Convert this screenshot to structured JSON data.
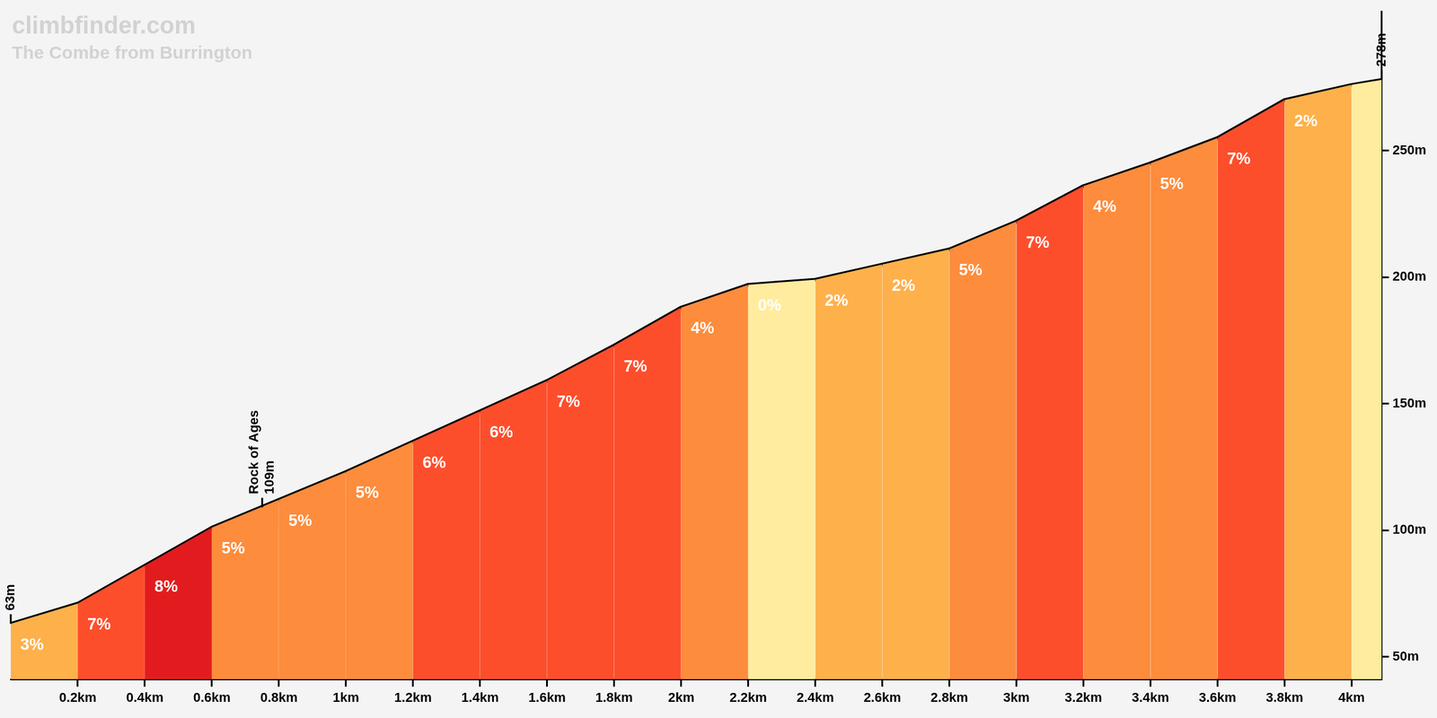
{
  "chart_data": {
    "type": "area",
    "title": "climbfinder.com",
    "subtitle": "The Combe from Burrington",
    "x": [
      0,
      0.2,
      0.4,
      0.6,
      0.8,
      1.0,
      1.2,
      1.4,
      1.6,
      1.8,
      2.0,
      2.2,
      2.4,
      2.6,
      2.8,
      3.0,
      3.2,
      3.4,
      3.6,
      3.8,
      4.0,
      4.09
    ],
    "values": [
      63,
      71,
      86,
      101,
      112,
      123,
      135,
      147,
      159,
      173,
      188,
      197,
      199,
      205,
      211,
      222,
      236,
      245,
      255,
      270,
      276,
      278
    ],
    "color": "#000000",
    "gradients": {
      "values": [
        3,
        7,
        8,
        5,
        5,
        5,
        6,
        6,
        7,
        7,
        4,
        0,
        2,
        2,
        5,
        7,
        4,
        5,
        7,
        2,
        null
      ],
      "value_labels": [
        "3%",
        "7%",
        "8%",
        "5%",
        "5%",
        "5%",
        "6%",
        "6%",
        "7%",
        "7%",
        "4%",
        "0%",
        "2%",
        "2%",
        "5%",
        "7%",
        "4%",
        "5%",
        "7%",
        "2%",
        null
      ],
      "colors": [
        "#feb04b",
        "#fd4e2c",
        "#e21c1e",
        "#fd8c3c",
        "#fd8c3c",
        "#fd8c3c",
        "#fd4e2c",
        "#fd4e2c",
        "#fd4e2c",
        "#fd4e2c",
        "#fd8c3c",
        "#ffec9e",
        "#feb04b",
        "#feb04b",
        "#fd8c3c",
        "#fd4e2c",
        "#fd8c3c",
        "#fd8c3c",
        "#fd4e2c",
        "#feb04b",
        "#ffec9e"
      ]
    },
    "point_labels": [
      {
        "x": 0,
        "y": 63,
        "label": "63m"
      },
      {
        "x": 4.09,
        "y": 278,
        "label": "278m"
      }
    ],
    "annotations": [
      {
        "x": 0.75,
        "y": 109,
        "label": "Rock of Ages",
        "value_label": "109m"
      }
    ],
    "xlim": [
      0,
      4.09
    ],
    "xticks": [
      {
        "value": 0.2,
        "label": "0.2km"
      },
      {
        "value": 0.4,
        "label": "0.4km"
      },
      {
        "value": 0.6,
        "label": "0.6km"
      },
      {
        "value": 0.8,
        "label": "0.8km"
      },
      {
        "value": 1,
        "label": "1km"
      },
      {
        "value": 1.2,
        "label": "1.2km"
      },
      {
        "value": 1.4,
        "label": "1.4km"
      },
      {
        "value": 1.6,
        "label": "1.6km"
      },
      {
        "value": 1.8,
        "label": "1.8km"
      },
      {
        "value": 2,
        "label": "2km"
      },
      {
        "value": 2.2,
        "label": "2.2km"
      },
      {
        "value": 2.4,
        "label": "2.4km"
      },
      {
        "value": 2.6,
        "label": "2.6km"
      },
      {
        "value": 2.8,
        "label": "2.8km"
      },
      {
        "value": 3,
        "label": "3km"
      },
      {
        "value": 3.2,
        "label": "3.2km"
      },
      {
        "value": 3.4,
        "label": "3.4km"
      },
      {
        "value": 3.6,
        "label": "3.6km"
      },
      {
        "value": 3.8,
        "label": "3.8km"
      },
      {
        "value": 4,
        "label": "4km"
      }
    ],
    "ylim": [
      41,
      305
    ],
    "yticks": [
      {
        "value": 50,
        "label": "50m"
      },
      {
        "value": 100,
        "label": "100m"
      },
      {
        "value": 150,
        "label": "150m"
      },
      {
        "value": 200,
        "label": "200m"
      },
      {
        "value": 250,
        "label": "250m"
      }
    ],
    "grid": false,
    "data_labels": true
  }
}
